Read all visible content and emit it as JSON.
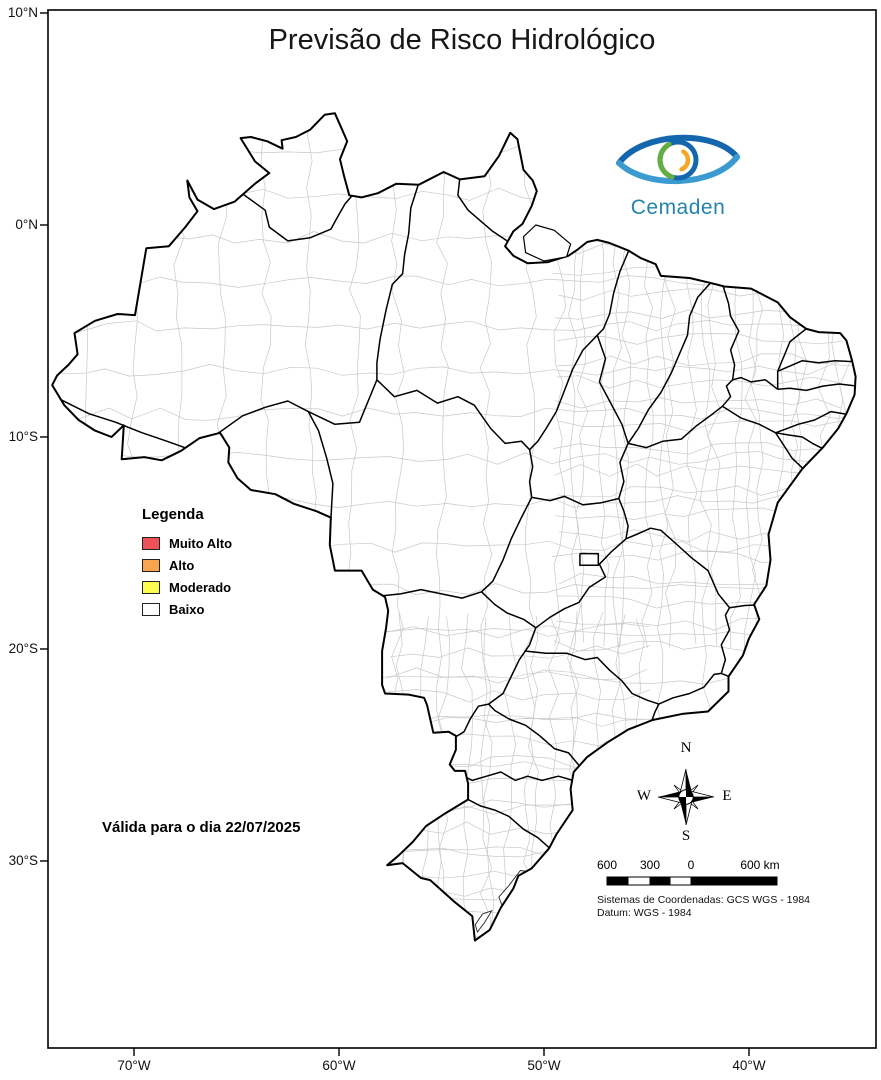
{
  "map": {
    "title": "Previsão de Risco Hidrológico",
    "validity": "Válida para o dia 22/07/2025",
    "logo": {
      "name": "Cemaden"
    },
    "legend": {
      "title": "Legenda",
      "items": [
        {
          "label": "Muito Alto",
          "color": "#ef5158"
        },
        {
          "label": "Alto",
          "color": "#f7a54e"
        },
        {
          "label": "Moderado",
          "color": "#fdfd50"
        },
        {
          "label": "Baixo",
          "color": "#ffffff"
        }
      ]
    },
    "compass": {
      "n": "N",
      "s": "S",
      "e": "E",
      "w": "W"
    },
    "scalebar": {
      "labels": [
        "600",
        "300",
        "0",
        "600 km"
      ]
    },
    "credits": [
      "Sistemas de Coordenadas: GCS WGS - 1984",
      "Datum: WGS - 1984"
    ],
    "axes": {
      "lat_ticks": [
        {
          "label": "10°N",
          "deg": 10
        },
        {
          "label": "0°N",
          "deg": 0
        },
        {
          "label": "10°S",
          "deg": -10
        },
        {
          "label": "20°S",
          "deg": -20
        },
        {
          "label": "30°S",
          "deg": -30
        }
      ],
      "lon_ticks": [
        {
          "label": "70°W",
          "deg": -70
        },
        {
          "label": "60°W",
          "deg": -60
        },
        {
          "label": "50°W",
          "deg": -50
        },
        {
          "label": "40°W",
          "deg": -40
        }
      ]
    }
  }
}
